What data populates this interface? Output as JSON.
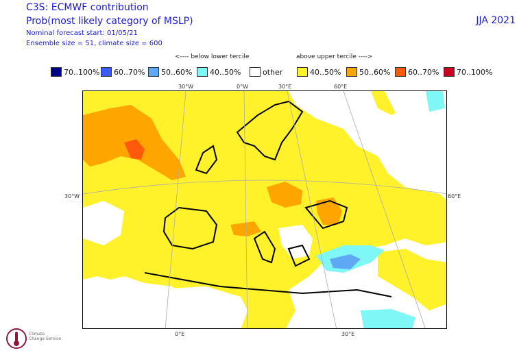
{
  "header": {
    "title": "C3S: ECMWF contribution",
    "subtitle": "Prob(most likely category of MSLP)",
    "forecast_start": "Nominal forecast start: 01/05/21",
    "ensemble": "Ensemble size = 51, climate size = 600",
    "season": "JJA 2021"
  },
  "tercile_labels": {
    "below": "<---- below lower tercile",
    "above": "above upper tercile ---->"
  },
  "legend": [
    {
      "label": "70..100%",
      "color": "#00008b"
    },
    {
      "label": "60..70%",
      "color": "#3a5bff"
    },
    {
      "label": "50..60%",
      "color": "#5ea8f5"
    },
    {
      "label": "40..50%",
      "color": "#7ff7f7"
    },
    {
      "label": "other",
      "color": "#ffffff"
    },
    {
      "label": "40..50%",
      "color": "#fff22a"
    },
    {
      "label": "50..60%",
      "color": "#ffa500"
    },
    {
      "label": "60..70%",
      "color": "#ff5a0a"
    },
    {
      "label": "70..100%",
      "color": "#cc0022"
    }
  ],
  "graticule_labels": {
    "top": [
      "30°W",
      "0°W",
      "30°E",
      "60°E"
    ],
    "left": "30°W",
    "right": "60°E",
    "bottom": [
      "0°E",
      "30°E"
    ]
  },
  "logo": {
    "text_line1": "Climate",
    "text_line2": "Change Service"
  }
}
